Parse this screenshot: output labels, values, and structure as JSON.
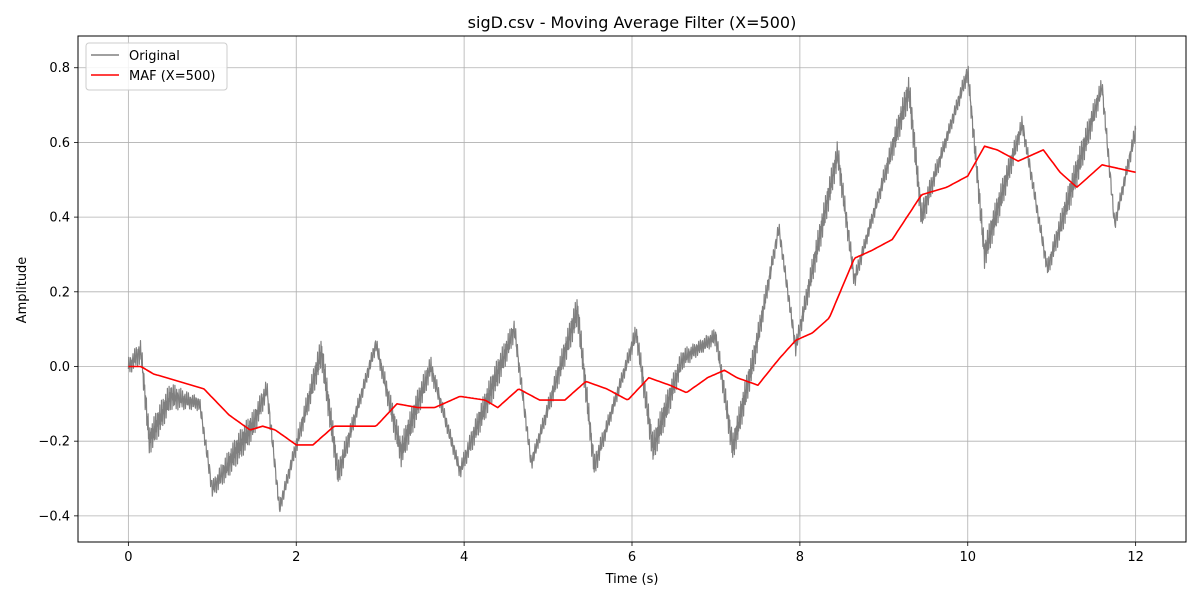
{
  "chart_data": {
    "type": "line",
    "title": "sigD.csv - Moving Average Filter (X=500)",
    "xlabel": "Time (s)",
    "ylabel": "Amplitude",
    "xlim": [
      -0.6,
      12.6
    ],
    "ylim": [
      -0.47,
      0.885
    ],
    "xticks": [
      0,
      2,
      4,
      6,
      8,
      10,
      12
    ],
    "yticks": [
      -0.4,
      -0.2,
      0.0,
      0.2,
      0.4,
      0.6,
      0.8
    ],
    "xtick_labels": [
      "0",
      "2",
      "4",
      "6",
      "8",
      "10",
      "12"
    ],
    "ytick_labels": [
      "−0.4",
      "−0.2",
      "0.0",
      "0.2",
      "0.4",
      "0.6",
      "0.8"
    ],
    "grid": true,
    "legend_position": "upper-left",
    "series": [
      {
        "name": "Original",
        "color": "#808080",
        "noise_amplitude": 0.03,
        "x": [
          0,
          0.15,
          0.25,
          0.5,
          0.85,
          1.0,
          1.5,
          1.65,
          1.8,
          2.3,
          2.5,
          2.95,
          3.25,
          3.6,
          3.95,
          4.6,
          4.8,
          5.35,
          5.55,
          6.05,
          6.25,
          6.6,
          7.0,
          7.2,
          7.45,
          7.75,
          7.95,
          8.45,
          8.65,
          9.3,
          9.45,
          10.0,
          10.2,
          10.65,
          10.95,
          11.6,
          11.75,
          12.0
        ],
        "y": [
          0.0,
          0.04,
          -0.2,
          -0.08,
          -0.1,
          -0.33,
          -0.15,
          -0.06,
          -0.38,
          0.04,
          -0.29,
          0.06,
          -0.23,
          0.0,
          -0.28,
          0.1,
          -0.26,
          0.15,
          -0.27,
          0.09,
          -0.22,
          0.02,
          0.08,
          -0.22,
          0.02,
          0.37,
          0.05,
          0.57,
          0.23,
          0.74,
          0.4,
          0.79,
          0.3,
          0.65,
          0.26,
          0.75,
          0.38,
          0.63
        ]
      },
      {
        "name": "MAF (X=500)",
        "color": "#ff0000",
        "noise_amplitude": 0,
        "x": [
          0,
          0.15,
          0.3,
          0.6,
          0.9,
          1.2,
          1.45,
          1.6,
          1.75,
          2.0,
          2.2,
          2.45,
          2.7,
          2.95,
          3.2,
          3.45,
          3.65,
          3.95,
          4.25,
          4.4,
          4.65,
          4.9,
          5.2,
          5.45,
          5.7,
          5.95,
          6.2,
          6.45,
          6.65,
          6.9,
          7.1,
          7.25,
          7.5,
          7.75,
          7.95,
          8.15,
          8.35,
          8.65,
          8.85,
          9.1,
          9.45,
          9.75,
          10.0,
          10.2,
          10.35,
          10.6,
          10.9,
          11.1,
          11.3,
          11.6,
          11.8,
          12.0
        ],
        "y": [
          0.0,
          0.0,
          -0.02,
          -0.04,
          -0.06,
          -0.13,
          -0.17,
          -0.16,
          -0.17,
          -0.21,
          -0.21,
          -0.16,
          -0.16,
          -0.16,
          -0.1,
          -0.11,
          -0.11,
          -0.08,
          -0.09,
          -0.11,
          -0.06,
          -0.09,
          -0.09,
          -0.04,
          -0.06,
          -0.09,
          -0.03,
          -0.05,
          -0.07,
          -0.03,
          -0.01,
          -0.03,
          -0.05,
          0.02,
          0.07,
          0.09,
          0.13,
          0.29,
          0.31,
          0.34,
          0.46,
          0.48,
          0.51,
          0.59,
          0.58,
          0.55,
          0.58,
          0.52,
          0.48,
          0.54,
          0.53,
          0.52
        ]
      }
    ]
  }
}
